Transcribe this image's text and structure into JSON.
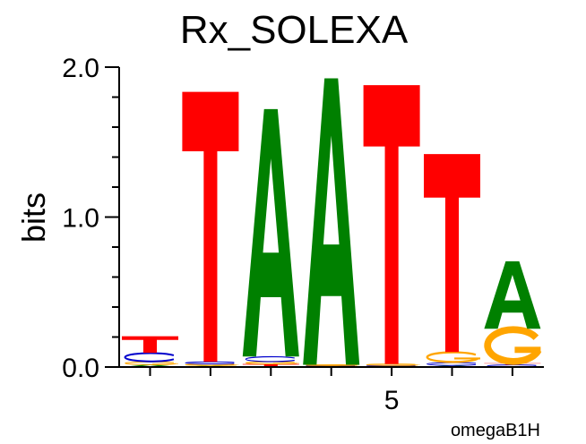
{
  "chart_data": {
    "type": "sequence-logo",
    "title": "Rx_SOLEXA",
    "ylabel": "bits",
    "ylim": [
      0,
      2.0
    ],
    "yticks": [
      {
        "value": 0.0,
        "label": "0.0"
      },
      {
        "value": 1.0,
        "label": "1.0"
      },
      {
        "value": 2.0,
        "label": "2.0"
      }
    ],
    "yminor_step": 0.2,
    "positions": [
      1,
      2,
      3,
      4,
      5,
      6,
      7
    ],
    "xticks": [
      {
        "value": 5,
        "label": "5"
      }
    ],
    "footer": "omegaB1H",
    "colors": {
      "A": "#008000",
      "C": "#0000cc",
      "G": "#ffa500",
      "T": "#ff0000"
    },
    "columns": [
      {
        "position": 1,
        "letters": [
          {
            "base": "A",
            "height": 0.015
          },
          {
            "base": "G",
            "height": 0.02
          },
          {
            "base": "C",
            "height": 0.06
          },
          {
            "base": "T",
            "height": 0.11
          }
        ]
      },
      {
        "position": 2,
        "letters": [
          {
            "base": "A",
            "height": 0.01
          },
          {
            "base": "G",
            "height": 0.01
          },
          {
            "base": "C",
            "height": 0.015
          },
          {
            "base": "T",
            "height": 1.8
          }
        ]
      },
      {
        "position": 3,
        "letters": [
          {
            "base": "T",
            "height": 0.02
          },
          {
            "base": "G",
            "height": 0.015
          },
          {
            "base": "C",
            "height": 0.035
          },
          {
            "base": "A",
            "height": 1.65
          }
        ]
      },
      {
        "position": 4,
        "letters": [
          {
            "base": "T",
            "height": 0.005
          },
          {
            "base": "C",
            "height": 0.005
          },
          {
            "base": "G",
            "height": 0.005
          },
          {
            "base": "A",
            "height": 1.91
          }
        ]
      },
      {
        "position": 5,
        "letters": [
          {
            "base": "A",
            "height": 0.005
          },
          {
            "base": "C",
            "height": 0.005
          },
          {
            "base": "G",
            "height": 0.01
          },
          {
            "base": "T",
            "height": 1.86
          }
        ]
      },
      {
        "position": 6,
        "letters": [
          {
            "base": "A",
            "height": 0.01
          },
          {
            "base": "C",
            "height": 0.02
          },
          {
            "base": "G",
            "height": 0.07
          },
          {
            "base": "T",
            "height": 1.32
          }
        ]
      },
      {
        "position": 7,
        "letters": [
          {
            "base": "C",
            "height": 0.015
          },
          {
            "base": "T",
            "height": 0.01
          },
          {
            "base": "G",
            "height": 0.23
          },
          {
            "base": "A",
            "height": 0.45
          }
        ]
      }
    ]
  }
}
